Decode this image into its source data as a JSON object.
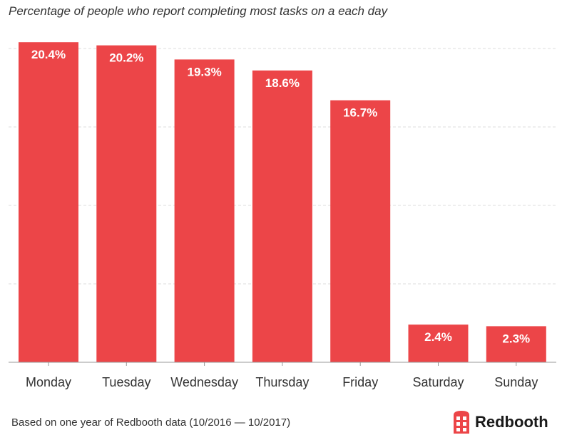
{
  "chart_data": {
    "type": "bar",
    "title": "Percentage of people who report completing most tasks on a each day",
    "categories": [
      "Monday",
      "Tuesday",
      "Wednesday",
      "Thursday",
      "Friday",
      "Saturday",
      "Sunday"
    ],
    "values": [
      20.4,
      20.2,
      19.3,
      18.6,
      16.7,
      2.4,
      2.3
    ],
    "data_labels": [
      "20.4%",
      "20.2%",
      "19.3%",
      "18.6%",
      "16.7%",
      "2.4%",
      "2.3%"
    ],
    "xlabel": "",
    "ylabel": "",
    "ylim": [
      0,
      20.8
    ],
    "grid": true,
    "grid_step": 5,
    "bar_color": "#ec4548"
  },
  "footnote": "Based on one year of Redbooth data (10/2016 — 10/2017)",
  "logo": {
    "text": "Redbooth",
    "color": "#ec4548"
  }
}
